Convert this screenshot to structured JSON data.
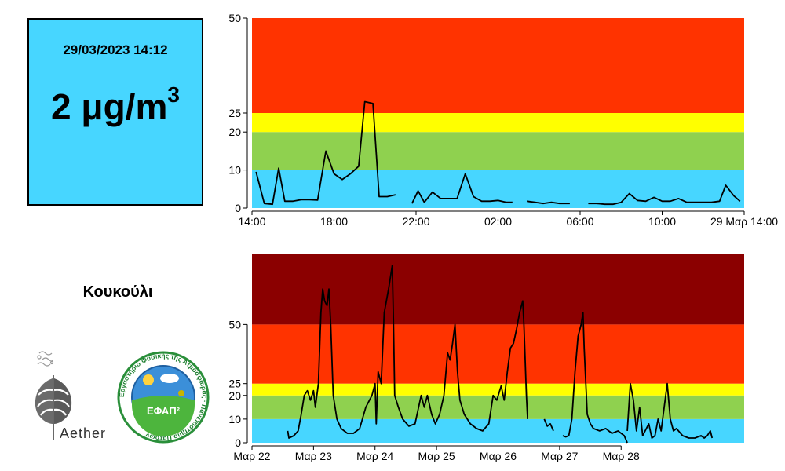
{
  "reading": {
    "timestamp": "29/03/2023 14:12",
    "value": "2",
    "unit": "μg/m",
    "unit_exponent": "3",
    "box_color": "#47d6ff"
  },
  "station": {
    "name": "Κουκούλι"
  },
  "logos": {
    "aether": {
      "text": "Aether"
    },
    "efap": {
      "center_text": "ΕΦΑΠ²",
      "ring_text": "Εργαστήριο Φυσικής της Ατμόσφαιρας · Πανεπιστήμιο Πατρών"
    }
  },
  "band_colors": {
    "good": "#47d6ff",
    "fair": "#8fd14f",
    "moderate": "#ffff00",
    "poor": "#ff3300",
    "very_poor": "#8b0000"
  },
  "chart_data": [
    {
      "type": "line",
      "title": "",
      "xlabel": "",
      "ylabel": "",
      "xlim": [
        0,
        24
      ],
      "ylim": [
        0,
        50
      ],
      "x_ticks": [
        0,
        4,
        8,
        12,
        16,
        20,
        24
      ],
      "x_tick_labels": [
        "14:00",
        "18:00",
        "22:00",
        "02:00",
        "06:00",
        "10:00",
        "29 Μαρ 14:00"
      ],
      "y_ticks": [
        0,
        10,
        20,
        25,
        50
      ],
      "y_tick_labels": [
        "0",
        "10",
        "20",
        "25",
        "50"
      ],
      "bands": [
        {
          "from": 0,
          "to": 10,
          "color": "#47d6ff"
        },
        {
          "from": 10,
          "to": 20,
          "color": "#8fd14f"
        },
        {
          "from": 20,
          "to": 25,
          "color": "#ffff00"
        },
        {
          "from": 25,
          "to": 50,
          "color": "#ff3300"
        }
      ],
      "series": [
        {
          "points": [
            [
              0.2,
              9.5
            ],
            [
              0.6,
              1.2
            ],
            [
              1.0,
              1.0
            ],
            [
              1.3,
              10.5
            ],
            [
              1.6,
              1.8
            ],
            [
              2.0,
              1.8
            ],
            [
              2.4,
              2.2
            ],
            [
              2.8,
              2.2
            ],
            [
              3.2,
              2.1
            ],
            [
              3.6,
              15
            ],
            [
              4.0,
              9
            ],
            [
              4.4,
              7.5
            ],
            [
              4.8,
              9
            ],
            [
              5.2,
              11
            ],
            [
              5.5,
              28
            ],
            [
              5.9,
              27.5
            ],
            [
              6.2,
              3
            ],
            [
              6.6,
              3
            ],
            [
              7.0,
              3.5
            ],
            null,
            [
              7.8,
              1.2
            ],
            [
              8.1,
              4.5
            ],
            [
              8.4,
              1.5
            ],
            [
              8.8,
              4.2
            ],
            [
              9.2,
              2.5
            ],
            [
              9.6,
              2.5
            ],
            [
              10.0,
              2.5
            ],
            [
              10.4,
              9
            ],
            [
              10.8,
              3
            ],
            [
              11.2,
              1.8
            ],
            [
              11.6,
              1.8
            ],
            [
              12.0,
              2
            ],
            [
              12.4,
              1.5
            ],
            [
              12.7,
              1.5
            ],
            null,
            [
              13.4,
              1.8
            ],
            [
              13.8,
              1.5
            ],
            [
              14.2,
              1.2
            ],
            [
              14.6,
              1.5
            ],
            [
              15.0,
              1.2
            ],
            [
              15.5,
              1.2
            ],
            null,
            [
              16.4,
              1.2
            ],
            [
              16.8,
              1.2
            ],
            [
              17.2,
              1
            ],
            [
              17.6,
              1
            ],
            [
              18.0,
              1.5
            ],
            [
              18.4,
              3.8
            ],
            [
              18.8,
              2
            ],
            [
              19.2,
              1.8
            ],
            [
              19.6,
              2.8
            ],
            [
              20.0,
              1.8
            ],
            [
              20.4,
              1.8
            ],
            [
              20.8,
              2.5
            ],
            [
              21.2,
              1.5
            ],
            [
              21.6,
              1.5
            ],
            [
              22.0,
              1.5
            ],
            [
              22.4,
              1.5
            ],
            [
              22.8,
              1.8
            ],
            [
              23.1,
              6
            ],
            [
              23.5,
              3.2
            ],
            [
              23.8,
              1.8
            ]
          ]
        }
      ]
    },
    {
      "type": "line",
      "title": "",
      "xlabel": "",
      "ylabel": "",
      "xlim": [
        0,
        8
      ],
      "ylim": [
        0,
        80
      ],
      "x_ticks": [
        0,
        1,
        2,
        3,
        4,
        5,
        6
      ],
      "x_tick_labels": [
        "Μαρ 22",
        "Μαρ 23",
        "Μαρ 24",
        "Μαρ 25",
        "Μαρ 26",
        "Μαρ 27",
        "Μαρ 28"
      ],
      "y_ticks": [
        0,
        10,
        20,
        25,
        50
      ],
      "y_tick_labels": [
        "0",
        "10",
        "20",
        "25",
        "50"
      ],
      "bands": [
        {
          "from": 0,
          "to": 10,
          "color": "#47d6ff"
        },
        {
          "from": 10,
          "to": 20,
          "color": "#8fd14f"
        },
        {
          "from": 20,
          "to": 25,
          "color": "#ffff00"
        },
        {
          "from": 25,
          "to": 50,
          "color": "#ff3300"
        },
        {
          "from": 50,
          "to": 80,
          "color": "#8b0000"
        }
      ],
      "series": [
        {
          "points": [
            [
              0.58,
              5
            ],
            [
              0.6,
              2
            ],
            [
              0.68,
              3
            ],
            [
              0.75,
              5
            ],
            [
              0.8,
              12
            ],
            [
              0.85,
              20
            ],
            [
              0.9,
              22
            ],
            [
              0.95,
              18
            ],
            [
              1.0,
              22
            ],
            [
              1.03,
              15
            ],
            [
              1.08,
              25
            ],
            [
              1.12,
              55
            ],
            [
              1.15,
              65
            ],
            [
              1.18,
              60
            ],
            [
              1.22,
              58
            ],
            [
              1.25,
              65
            ],
            [
              1.28,
              50
            ],
            [
              1.32,
              20
            ],
            [
              1.38,
              10
            ],
            [
              1.45,
              6
            ],
            [
              1.55,
              4
            ],
            [
              1.65,
              4
            ],
            [
              1.75,
              6
            ],
            [
              1.85,
              15
            ],
            [
              1.95,
              20
            ],
            [
              2.0,
              25
            ],
            [
              2.02,
              8
            ],
            [
              2.05,
              30
            ],
            [
              2.1,
              25
            ],
            [
              2.15,
              55
            ],
            [
              2.22,
              65
            ],
            [
              2.28,
              75
            ],
            [
              2.3,
              50
            ],
            [
              2.32,
              20
            ],
            [
              2.38,
              15
            ],
            [
              2.45,
              10
            ],
            [
              2.55,
              7
            ],
            [
              2.65,
              8
            ],
            [
              2.75,
              20
            ],
            [
              2.8,
              15
            ],
            [
              2.85,
              20
            ],
            [
              2.92,
              12
            ],
            [
              2.98,
              8
            ],
            [
              3.05,
              12
            ],
            [
              3.12,
              20
            ],
            [
              3.18,
              38
            ],
            [
              3.22,
              35
            ],
            [
              3.26,
              42
            ],
            [
              3.3,
              50
            ],
            [
              3.34,
              30
            ],
            [
              3.38,
              18
            ],
            [
              3.45,
              12
            ],
            [
              3.55,
              8
            ],
            [
              3.65,
              6
            ],
            [
              3.75,
              5
            ],
            [
              3.85,
              8
            ],
            [
              3.92,
              20
            ],
            [
              3.98,
              18
            ],
            [
              4.05,
              24
            ],
            [
              4.1,
              18
            ],
            [
              4.15,
              30
            ],
            [
              4.2,
              40
            ],
            [
              4.25,
              42
            ],
            [
              4.3,
              48
            ],
            [
              4.35,
              55
            ],
            [
              4.4,
              60
            ],
            [
              4.42,
              50
            ],
            [
              4.46,
              20
            ],
            [
              4.48,
              10
            ],
            null,
            [
              4.75,
              10
            ],
            [
              4.8,
              7
            ],
            [
              4.85,
              8
            ],
            [
              4.9,
              5
            ],
            null,
            [
              5.05,
              3
            ],
            [
              5.1,
              2.5
            ],
            [
              5.15,
              3
            ],
            [
              5.2,
              10
            ],
            [
              5.25,
              30
            ],
            [
              5.3,
              45
            ],
            [
              5.35,
              50
            ],
            [
              5.38,
              55
            ],
            [
              5.4,
              40
            ],
            [
              5.45,
              12
            ],
            [
              5.5,
              8
            ],
            [
              5.55,
              6
            ],
            [
              5.65,
              5
            ],
            [
              5.75,
              6
            ],
            [
              5.85,
              4
            ],
            [
              5.95,
              5
            ],
            [
              6.05,
              3
            ],
            [
              6.1,
              0
            ],
            null,
            [
              6.1,
              5
            ],
            [
              6.15,
              25
            ],
            [
              6.2,
              18
            ],
            [
              6.25,
              5
            ],
            [
              6.3,
              15
            ],
            [
              6.35,
              3
            ],
            [
              6.45,
              8
            ],
            [
              6.5,
              2
            ],
            [
              6.55,
              3
            ],
            [
              6.6,
              10
            ],
            [
              6.65,
              5
            ],
            [
              6.7,
              15
            ],
            [
              6.75,
              25
            ],
            [
              6.8,
              10
            ],
            [
              6.85,
              5
            ],
            [
              6.9,
              6
            ],
            [
              7.0,
              3
            ],
            [
              7.1,
              2
            ],
            [
              7.2,
              2
            ],
            [
              7.3,
              3
            ],
            [
              7.35,
              2
            ],
            [
              7.4,
              3
            ],
            [
              7.45,
              5
            ],
            [
              7.48,
              2
            ]
          ]
        }
      ]
    }
  ]
}
